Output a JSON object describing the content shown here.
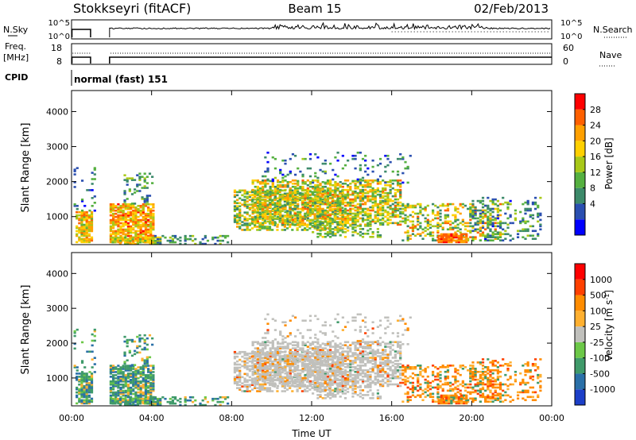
{
  "header": {
    "station": "Stokkseyri (fitACF)",
    "beam": "Beam 15",
    "date": "02/Feb/2013"
  },
  "status_panel": {
    "nsky_label": "N.Sky",
    "nsky_ticks": [
      "10^5",
      "10^0"
    ],
    "nsearch_label": "N.Search",
    "nsearch_ticks": [
      "10^5",
      "10^0"
    ],
    "freq_label_line1": "Freq.",
    "freq_label_line2": "[MHz]",
    "freq_ticks": [
      "18",
      "8"
    ],
    "nave_label": "Nave",
    "nave_ticks": [
      "60",
      "0"
    ],
    "cpid_label": "CPID",
    "cpid_text": "normal (fast) 151"
  },
  "colors": {
    "ground_scatter": "#c0c0bc"
  },
  "chart_data": [
    {
      "type": "heatmap",
      "parameter": "power",
      "ylabel": "Slant Range [km]",
      "xlabel": "",
      "ylim": [
        200,
        4600
      ],
      "y_ticks": [
        "1000",
        "2000",
        "3000",
        "4000"
      ],
      "xlim_hours": [
        0,
        24
      ],
      "colorbar_label": "Power [dB]",
      "colorbar_ticks": [
        "28",
        "24",
        "20",
        "16",
        "12",
        "8",
        "4"
      ],
      "colorbar_colors": [
        "#0000ff",
        "#2a4fb0",
        "#3c8a6a",
        "#55b040",
        "#a8c818",
        "#ffd000",
        "#ffa000",
        "#ff6000",
        "#ff0000"
      ]
    },
    {
      "type": "heatmap",
      "parameter": "velocity",
      "ylabel": "Slant Range [km]",
      "xlabel": "Time UT",
      "ylim": [
        200,
        4600
      ],
      "y_ticks": [
        "1000",
        "2000",
        "3000",
        "4000"
      ],
      "x_ticks": [
        "00:00",
        "04:00",
        "08:00",
        "12:00",
        "16:00",
        "20:00",
        "00:00"
      ],
      "xlim_hours": [
        0,
        24
      ],
      "colorbar_label": "Velocity [m s",
      "colorbar_label_sup": "-1",
      "colorbar_label_end": "]",
      "colorbar_ticks": [
        "1000",
        "500",
        "100",
        "25",
        "-25",
        "-100",
        "-500",
        "-1000"
      ],
      "colorbar_colors": [
        "#1c3fc8",
        "#2a70a8",
        "#3f9a6a",
        "#6cc848",
        "#c0c0bc",
        "#ffb030",
        "#ff8c00",
        "#ff4000",
        "#ff0000"
      ]
    }
  ]
}
